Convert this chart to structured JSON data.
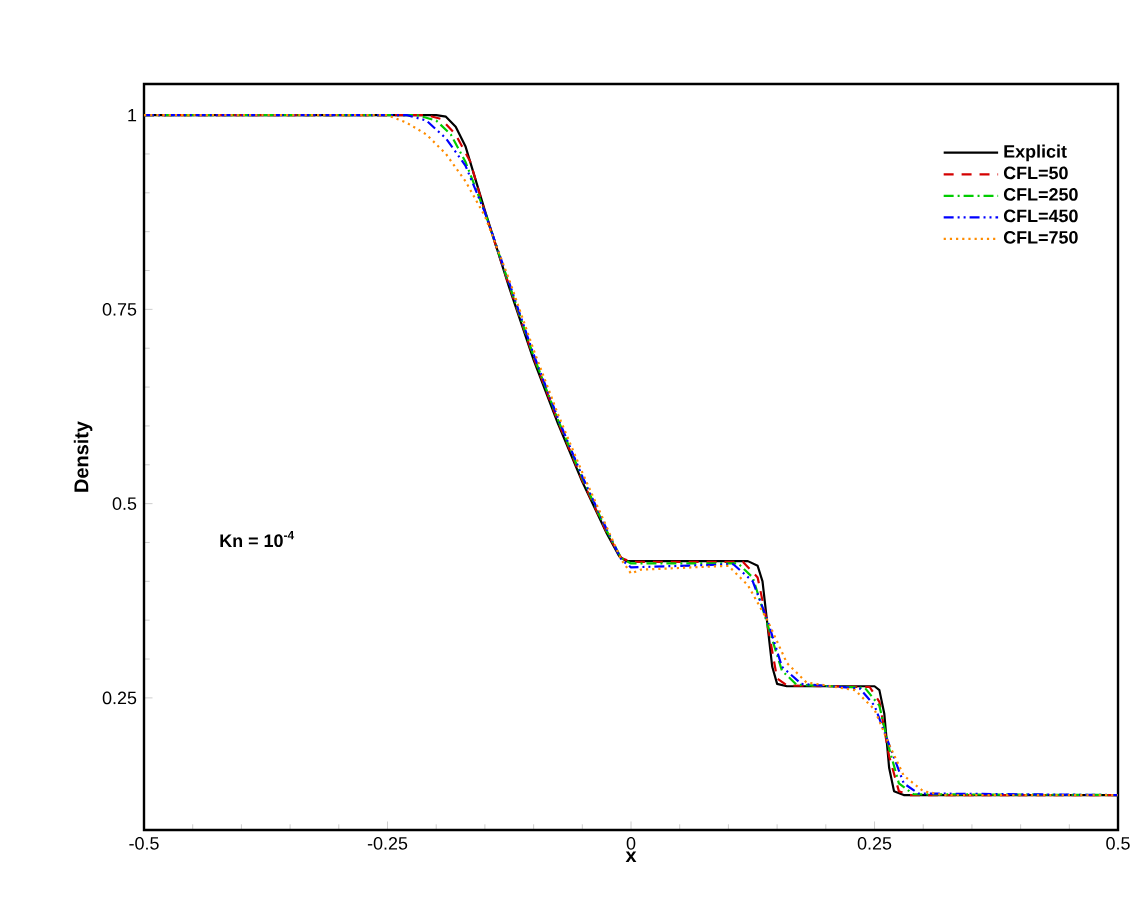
{
  "chart_data": {
    "type": "line",
    "xlabel": "x",
    "ylabel": "Density",
    "annotations": [
      "Kn = 10$^{-4}$"
    ],
    "xlim": [
      -0.5,
      0.5
    ],
    "ylim": [
      0.08,
      1.04
    ],
    "xticks": [
      -0.5,
      -0.25,
      0,
      0.25,
      0.5
    ],
    "yticks": [
      0.25,
      0.5,
      0.75,
      1
    ],
    "legend": "top right",
    "grid": false,
    "series": [
      {
        "name": "Explicit",
        "color": "#000000",
        "line_style": "solid",
        "x": [
          -0.5,
          -0.2,
          -0.19,
          -0.18,
          -0.17,
          -0.15,
          -0.125,
          -0.1,
          -0.075,
          -0.05,
          -0.025,
          -0.012,
          -0.005,
          0.12,
          0.13,
          0.135,
          0.14,
          0.145,
          0.15,
          0.16,
          0.25,
          0.255,
          0.26,
          0.265,
          0.27,
          0.28,
          0.5
        ],
        "values": [
          1,
          1,
          0.998,
          0.985,
          0.96,
          0.877,
          0.778,
          0.685,
          0.603,
          0.528,
          0.462,
          0.432,
          0.426,
          0.426,
          0.42,
          0.4,
          0.345,
          0.29,
          0.268,
          0.265,
          0.265,
          0.26,
          0.23,
          0.16,
          0.13,
          0.125,
          0.125
        ]
      },
      {
        "name": "CFL=50",
        "color": "#d40000",
        "line_style": "dashed",
        "x": [
          -0.5,
          -0.21,
          -0.195,
          -0.18,
          -0.165,
          -0.15,
          -0.125,
          -0.1,
          -0.075,
          -0.05,
          -0.025,
          -0.01,
          0,
          0.115,
          0.13,
          0.14,
          0.15,
          0.16,
          0.245,
          0.255,
          0.265,
          0.275,
          0.285,
          0.5
        ],
        "values": [
          1,
          1,
          0.995,
          0.975,
          0.94,
          0.875,
          0.78,
          0.688,
          0.606,
          0.53,
          0.463,
          0.43,
          0.425,
          0.425,
          0.405,
          0.345,
          0.275,
          0.266,
          0.264,
          0.245,
          0.175,
          0.13,
          0.125,
          0.125
        ]
      },
      {
        "name": "CFL=250",
        "color": "#00cc00",
        "line_style": "dashdot",
        "x": [
          -0.5,
          -0.22,
          -0.2,
          -0.185,
          -0.17,
          -0.15,
          -0.125,
          -0.1,
          -0.075,
          -0.05,
          -0.025,
          -0.01,
          0,
          0.11,
          0.125,
          0.14,
          0.155,
          0.17,
          0.24,
          0.255,
          0.265,
          0.275,
          0.29,
          0.5
        ],
        "values": [
          1,
          1,
          0.993,
          0.975,
          0.94,
          0.875,
          0.782,
          0.69,
          0.608,
          0.533,
          0.465,
          0.43,
          0.423,
          0.423,
          0.405,
          0.345,
          0.285,
          0.267,
          0.263,
          0.24,
          0.185,
          0.14,
          0.126,
          0.125
        ]
      },
      {
        "name": "CFL=450",
        "color": "#0000ff",
        "line_style": "dashdotdot",
        "x": [
          -0.5,
          -0.23,
          -0.21,
          -0.19,
          -0.17,
          -0.15,
          -0.125,
          -0.1,
          -0.075,
          -0.05,
          -0.025,
          -0.01,
          0,
          0.105,
          0.125,
          0.14,
          0.155,
          0.175,
          0.235,
          0.25,
          0.265,
          0.28,
          0.295,
          0.5
        ],
        "values": [
          1,
          1,
          0.993,
          0.97,
          0.935,
          0.875,
          0.784,
          0.692,
          0.61,
          0.535,
          0.467,
          0.428,
          0.418,
          0.422,
          0.4,
          0.35,
          0.29,
          0.268,
          0.262,
          0.24,
          0.19,
          0.14,
          0.127,
          0.125
        ]
      },
      {
        "name": "CFL=750",
        "color": "#ff8c00",
        "line_style": "dotted",
        "x": [
          -0.5,
          -0.25,
          -0.23,
          -0.21,
          -0.19,
          -0.17,
          -0.15,
          -0.125,
          -0.1,
          -0.075,
          -0.05,
          -0.025,
          -0.01,
          0,
          0.01,
          0.1,
          0.12,
          0.14,
          0.16,
          0.18,
          0.23,
          0.25,
          0.265,
          0.28,
          0.3,
          0.32,
          0.5
        ],
        "values": [
          1,
          1,
          0.99,
          0.975,
          0.95,
          0.915,
          0.87,
          0.788,
          0.698,
          0.615,
          0.54,
          0.47,
          0.428,
          0.41,
          0.415,
          0.42,
          0.395,
          0.35,
          0.295,
          0.27,
          0.26,
          0.235,
          0.19,
          0.15,
          0.13,
          0.125,
          0.125
        ]
      }
    ]
  }
}
